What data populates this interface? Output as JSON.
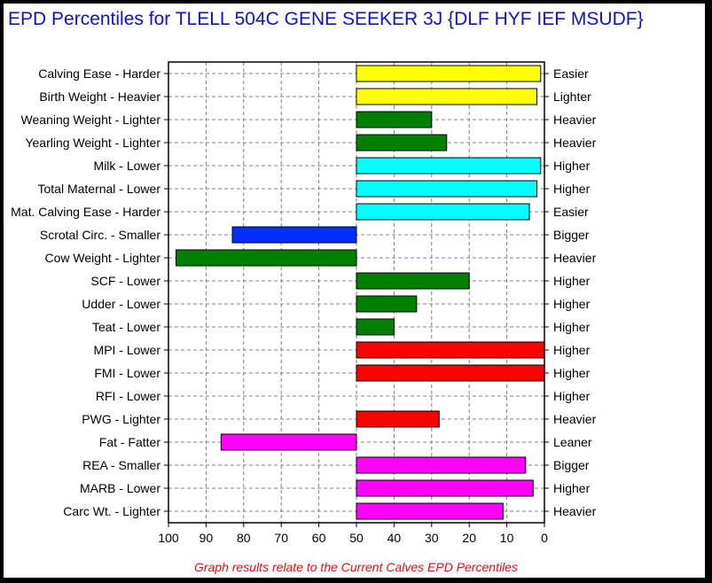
{
  "title": "EPD Percentiles for TLELL 504C GENE SEEKER 3J {DLF HYF IEF MSUDF}",
  "footnote": "Graph results relate to the Current Calves EPD Percentiles",
  "chart_data": {
    "type": "bar",
    "orientation": "horizontal",
    "x_axis_reversed": true,
    "xlim": [
      100,
      0
    ],
    "baseline": 50,
    "grid": true,
    "x_ticks": [
      "100",
      "90",
      "80",
      "70",
      "60",
      "50",
      "40",
      "30",
      "20",
      "10",
      "0"
    ],
    "rows": [
      {
        "left_label": "Calving Ease - Harder",
        "right_label": "Easier",
        "value": 1,
        "color": "#ffff00"
      },
      {
        "left_label": "Birth Weight - Heavier",
        "right_label": "Lighter",
        "value": 2,
        "color": "#ffff00"
      },
      {
        "left_label": "Weaning Weight - Lighter",
        "right_label": "Heavier",
        "value": 30,
        "color": "#008000"
      },
      {
        "left_label": "Yearling Weight - Lighter",
        "right_label": "Heavier",
        "value": 26,
        "color": "#008000"
      },
      {
        "left_label": "Milk - Lower",
        "right_label": "Higher",
        "value": 1,
        "color": "#00ffff"
      },
      {
        "left_label": "Total Maternal - Lower",
        "right_label": "Higher",
        "value": 2,
        "color": "#00ffff"
      },
      {
        "left_label": "Mat. Calving Ease - Harder",
        "right_label": "Easier",
        "value": 4,
        "color": "#00ffff"
      },
      {
        "left_label": "Scrotal Circ. - Smaller",
        "right_label": "Bigger",
        "value": 83,
        "color": "#0030ff"
      },
      {
        "left_label": "Cow Weight - Lighter",
        "right_label": "Heavier",
        "value": 98,
        "color": "#008000"
      },
      {
        "left_label": "SCF - Lower",
        "right_label": "Higher",
        "value": 20,
        "color": "#008000"
      },
      {
        "left_label": "Udder - Lower",
        "right_label": "Higher",
        "value": 34,
        "color": "#008000"
      },
      {
        "left_label": "Teat - Lower",
        "right_label": "Higher",
        "value": 40,
        "color": "#008000"
      },
      {
        "left_label": "MPI - Lower",
        "right_label": "Higher",
        "value": 0,
        "color": "#ff0000"
      },
      {
        "left_label": "FMI - Lower",
        "right_label": "Higher",
        "value": 0,
        "color": "#ff0000"
      },
      {
        "left_label": "RFI - Lower",
        "right_label": "Higher",
        "value": null,
        "color": "#ff0000"
      },
      {
        "left_label": "PWG - Lighter",
        "right_label": "Heavier",
        "value": 28,
        "color": "#ff0000"
      },
      {
        "left_label": "Fat - Fatter",
        "right_label": "Leaner",
        "value": 86,
        "color": "#ff00ff"
      },
      {
        "left_label": "REA - Smaller",
        "right_label": "Bigger",
        "value": 5,
        "color": "#ff00ff"
      },
      {
        "left_label": "MARB - Lower",
        "right_label": "Higher",
        "value": 3,
        "color": "#ff00ff"
      },
      {
        "left_label": "Carc Wt. - Lighter",
        "right_label": "Heavier",
        "value": 11,
        "color": "#ff00ff"
      }
    ]
  }
}
